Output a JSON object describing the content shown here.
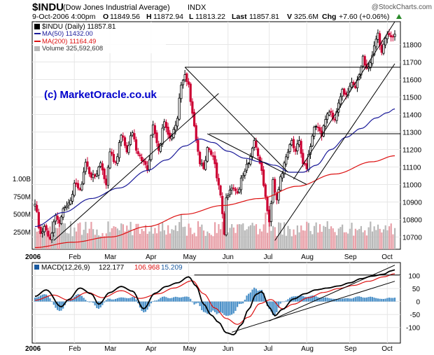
{
  "header": {
    "title": "$INDU",
    "subtitle": "(Dow Jones Industrial Average)",
    "exchange": "INDX",
    "brand": "@StockCharts.com",
    "date": "9-Oct-2006 4:00pm",
    "open_label": "O",
    "open": "11849.56",
    "high_label": "H",
    "high": "11872.94",
    "low_label": "L",
    "low": "11813.22",
    "last_label": "Last",
    "last": "11857.81",
    "volume_label": "V",
    "volume": "325.6M",
    "change_label": "Chg",
    "change": "+7.60 (+0.06%)"
  },
  "legend": {
    "price": "$INDU (Daily) 11857.81",
    "ma50": "MA(50) 11432.00",
    "ma200": "MA(200) 11164.49",
    "volume": "Volume 325,592,608"
  },
  "watermark": "(c) MarketOracle.co.uk",
  "colors": {
    "up": "#000000",
    "down": "#cc0033",
    "ma50": "#1a1a99",
    "ma200": "#dd1111",
    "volume_up": "#b8b8b8",
    "volume_down": "#e8a0a8",
    "macd_line": "#000000",
    "signal_line": "#dd1111",
    "histogram": "#4a90c8",
    "trendline": "#000000"
  },
  "chart_data": [
    {
      "type": "candlestick",
      "title": "$INDU (Dow Jones Industrial Average) Daily",
      "ylim": [
        10630,
        11930
      ],
      "y_ticks": [
        10700,
        10800,
        10900,
        11000,
        11100,
        11200,
        11300,
        11400,
        11500,
        11600,
        11700,
        11800
      ],
      "y_tick_labels": [
        "10700",
        "10800",
        "10900",
        "11000",
        "11100",
        "11200",
        "11300",
        "11400",
        "11500",
        "11600",
        "11700",
        "11800"
      ],
      "volume_ticks": [
        250000000,
        500000000,
        750000000,
        1000000000
      ],
      "volume_tick_labels": [
        "250M",
        "500M",
        "750M",
        "1.00B"
      ],
      "x_labels": [
        "2006",
        "Feb",
        "Mar",
        "Apr",
        "May",
        "Jun",
        "Jul",
        "Aug",
        "Sep",
        "Oct"
      ],
      "x_label_day": [
        0,
        21,
        40,
        62,
        82,
        103,
        125,
        145,
        168,
        188
      ],
      "num_days": 193,
      "anchors_close": [
        [
          0,
          10880
        ],
        [
          3,
          10720
        ],
        [
          5,
          10760
        ],
        [
          8,
          10700
        ],
        [
          11,
          10820
        ],
        [
          13,
          10790
        ],
        [
          16,
          10880
        ],
        [
          19,
          10900
        ],
        [
          21,
          11000
        ],
        [
          24,
          10960
        ],
        [
          27,
          11120
        ],
        [
          30,
          11050
        ],
        [
          33,
          11060
        ],
        [
          35,
          11120
        ],
        [
          38,
          11000
        ],
        [
          40,
          11200
        ],
        [
          43,
          11120
        ],
        [
          46,
          11290
        ],
        [
          49,
          11190
        ],
        [
          52,
          11300
        ],
        [
          55,
          11170
        ],
        [
          58,
          11130
        ],
        [
          60,
          11090
        ],
        [
          63,
          11330
        ],
        [
          66,
          11200
        ],
        [
          69,
          11360
        ],
        [
          72,
          11260
        ],
        [
          75,
          11330
        ],
        [
          78,
          11560
        ],
        [
          80,
          11640
        ],
        [
          82,
          11560
        ],
        [
          84,
          11410
        ],
        [
          86,
          11260
        ],
        [
          88,
          11120
        ],
        [
          90,
          11100
        ],
        [
          92,
          11200
        ],
        [
          95,
          11170
        ],
        [
          97,
          11040
        ],
        [
          99,
          10940
        ],
        [
          100,
          10820
        ],
        [
          101,
          10720
        ],
        [
          102,
          10910
        ],
        [
          105,
          10990
        ],
        [
          108,
          10950
        ],
        [
          111,
          11050
        ],
        [
          114,
          11130
        ],
        [
          117,
          11240
        ],
        [
          119,
          11170
        ],
        [
          121,
          11090
        ],
        [
          123,
          10920
        ],
        [
          125,
          10780
        ],
        [
          127,
          11020
        ],
        [
          129,
          10900
        ],
        [
          131,
          11050
        ],
        [
          134,
          11150
        ],
        [
          137,
          11240
        ],
        [
          139,
          11200
        ],
        [
          141,
          11260
        ],
        [
          143,
          11110
        ],
        [
          145,
          11100
        ],
        [
          147,
          11220
        ],
        [
          149,
          11320
        ],
        [
          151,
          11340
        ],
        [
          153,
          11280
        ],
        [
          155,
          11380
        ],
        [
          157,
          11420
        ],
        [
          160,
          11360
        ],
        [
          162,
          11470
        ],
        [
          164,
          11540
        ],
        [
          166,
          11510
        ],
        [
          169,
          11580
        ],
        [
          171,
          11550
        ],
        [
          173,
          11620
        ],
        [
          175,
          11720
        ],
        [
          177,
          11660
        ],
        [
          179,
          11700
        ],
        [
          181,
          11780
        ],
        [
          183,
          11860
        ],
        [
          185,
          11760
        ],
        [
          188,
          11870
        ],
        [
          190,
          11840
        ],
        [
          192,
          11857
        ]
      ],
      "ma50_anchors": [
        [
          0,
          10760
        ],
        [
          15,
          10840
        ],
        [
          30,
          10920
        ],
        [
          45,
          10980
        ],
        [
          60,
          11080
        ],
        [
          70,
          11140
        ],
        [
          80,
          11220
        ],
        [
          88,
          11260
        ],
        [
          95,
          11240
        ],
        [
          103,
          11190
        ],
        [
          112,
          11150
        ],
        [
          120,
          11130
        ],
        [
          128,
          11110
        ],
        [
          136,
          11070
        ],
        [
          143,
          11070
        ],
        [
          150,
          11110
        ],
        [
          158,
          11200
        ],
        [
          166,
          11270
        ],
        [
          174,
          11320
        ],
        [
          182,
          11380
        ],
        [
          188,
          11410
        ],
        [
          192,
          11432
        ]
      ],
      "ma200_anchors": [
        [
          0,
          10640
        ],
        [
          20,
          10670
        ],
        [
          40,
          10700
        ],
        [
          60,
          10760
        ],
        [
          80,
          10830
        ],
        [
          100,
          10880
        ],
        [
          120,
          10920
        ],
        [
          140,
          10990
        ],
        [
          160,
          11060
        ],
        [
          180,
          11130
        ],
        [
          192,
          11164
        ]
      ],
      "trendlines": [
        {
          "from": [
            10,
            10680
          ],
          "to": [
            98,
            11520
          ]
        },
        {
          "from": [
            80,
            11670
          ],
          "to": [
            135,
            11070
          ]
        },
        {
          "from": [
            92,
            11290
          ],
          "to": [
            145,
            11000
          ]
        },
        {
          "from": [
            128,
            10680
          ],
          "to": [
            192,
            11690
          ]
        },
        {
          "from": [
            138,
            11030
          ],
          "to": [
            192,
            11930
          ]
        }
      ],
      "horizontal_lines": [
        {
          "y": 11670,
          "from": 80,
          "to": 192
        },
        {
          "y": 11290,
          "from": 93,
          "to": 192
        }
      ]
    },
    {
      "type": "line",
      "title": "MACD(12,26,9)",
      "legend": [
        "MACD(12,26,9)",
        "122.177",
        "106.968",
        "15.209"
      ],
      "ylim": [
        -160,
        150
      ],
      "y_ticks": [
        100,
        50,
        0,
        -50,
        -100
      ],
      "y_tick_labels": [
        "100",
        "50",
        "0",
        "-50",
        "-100"
      ],
      "x_labels": [
        "2006",
        "Feb",
        "Mar",
        "Apr",
        "May",
        "Jun",
        "Jul",
        "Aug",
        "Sep",
        "Oct"
      ],
      "x_label_day": [
        0,
        21,
        40,
        62,
        82,
        103,
        125,
        145,
        168,
        188
      ],
      "macd_anchors": [
        [
          0,
          20
        ],
        [
          6,
          45
        ],
        [
          14,
          -20
        ],
        [
          18,
          8
        ],
        [
          24,
          52
        ],
        [
          30,
          30
        ],
        [
          34,
          -10
        ],
        [
          40,
          35
        ],
        [
          46,
          58
        ],
        [
          52,
          40
        ],
        [
          58,
          -28
        ],
        [
          64,
          32
        ],
        [
          70,
          58
        ],
        [
          76,
          72
        ],
        [
          82,
          95
        ],
        [
          86,
          60
        ],
        [
          90,
          -10
        ],
        [
          94,
          -52
        ],
        [
          98,
          -80
        ],
        [
          102,
          -120
        ],
        [
          106,
          -128
        ],
        [
          110,
          -90
        ],
        [
          114,
          -30
        ],
        [
          118,
          28
        ],
        [
          121,
          38
        ],
        [
          125,
          -22
        ],
        [
          128,
          -55
        ],
        [
          132,
          -30
        ],
        [
          138,
          10
        ],
        [
          144,
          30
        ],
        [
          150,
          45
        ],
        [
          156,
          52
        ],
        [
          162,
          60
        ],
        [
          168,
          72
        ],
        [
          174,
          88
        ],
        [
          180,
          98
        ],
        [
          186,
          105
        ],
        [
          190,
          118
        ],
        [
          192,
          122
        ]
      ],
      "signal_anchors": [
        [
          0,
          5
        ],
        [
          10,
          25
        ],
        [
          18,
          5
        ],
        [
          28,
          35
        ],
        [
          36,
          15
        ],
        [
          46,
          42
        ],
        [
          56,
          12
        ],
        [
          66,
          30
        ],
        [
          74,
          52
        ],
        [
          84,
          80
        ],
        [
          90,
          30
        ],
        [
          96,
          -25
        ],
        [
          102,
          -65
        ],
        [
          108,
          -88
        ],
        [
          114,
          -60
        ],
        [
          120,
          -8
        ],
        [
          126,
          8
        ],
        [
          132,
          -28
        ],
        [
          138,
          -10
        ],
        [
          146,
          15
        ],
        [
          154,
          35
        ],
        [
          162,
          50
        ],
        [
          170,
          62
        ],
        [
          178,
          78
        ],
        [
          186,
          95
        ],
        [
          192,
          107
        ]
      ],
      "trendlines": [
        {
          "from": [
            105,
            -118
          ],
          "to": [
            192,
            78
          ]
        },
        {
          "from": [
            125,
            -75
          ],
          "to": [
            192,
            140
          ]
        }
      ],
      "horizontal_lines": [
        {
          "y": 102,
          "from": 85,
          "to": 192
        }
      ]
    }
  ]
}
